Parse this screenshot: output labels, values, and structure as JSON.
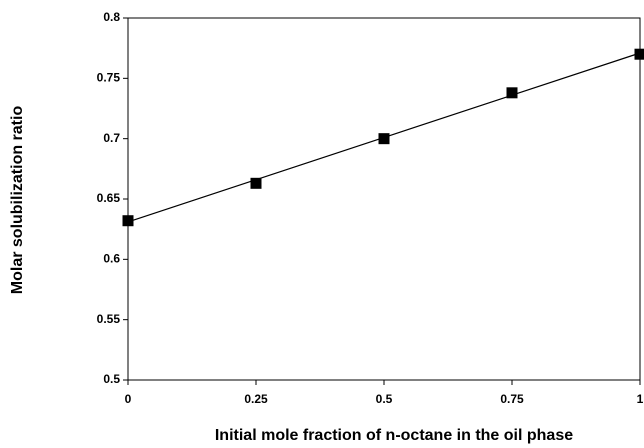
{
  "chart_data": {
    "type": "scatter",
    "xlabel": "Initial mole fraction of n-octane in the oil phase",
    "ylabel": "Molar solubilization ratio",
    "x": [
      0,
      0.25,
      0.5,
      0.75,
      1
    ],
    "series": [
      {
        "color": "#000000",
        "values": [
          0.632,
          0.663,
          0.7,
          0.738,
          0.77
        ]
      }
    ],
    "trendline": {
      "x": [
        0,
        1
      ],
      "values": [
        0.631,
        0.771
      ],
      "color": "#000000"
    },
    "xlim": [
      0,
      1
    ],
    "xticks": [
      0,
      0.25,
      0.5,
      0.75,
      1
    ],
    "ylim": [
      0.5,
      0.8
    ],
    "yticks": [
      0.5,
      0.55,
      0.6,
      0.65,
      0.7,
      0.75,
      0.8
    ],
    "grid": false
  }
}
